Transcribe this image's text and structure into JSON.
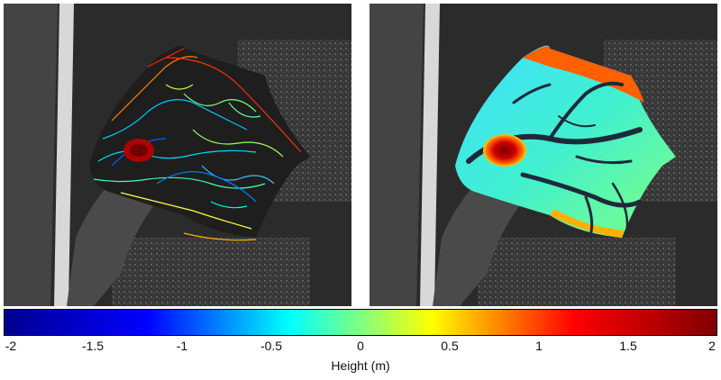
{
  "colorbar": {
    "title": "Height (m)",
    "min": -2,
    "max": 2,
    "ticks": [
      "-2",
      "-1.5",
      "-1",
      "-0.5",
      "0",
      "0.5",
      "1",
      "1.5",
      "2"
    ],
    "colormap": "jet",
    "colors": [
      "#00008f",
      "#0000ff",
      "#00ffff",
      "#ffff00",
      "#ff0000",
      "#800000"
    ]
  },
  "panels": [
    {
      "name": "contour-height-map",
      "style": "contour lines over satellite image"
    },
    {
      "name": "filled-height-map",
      "style": "filled elevation over satellite image"
    }
  ]
}
